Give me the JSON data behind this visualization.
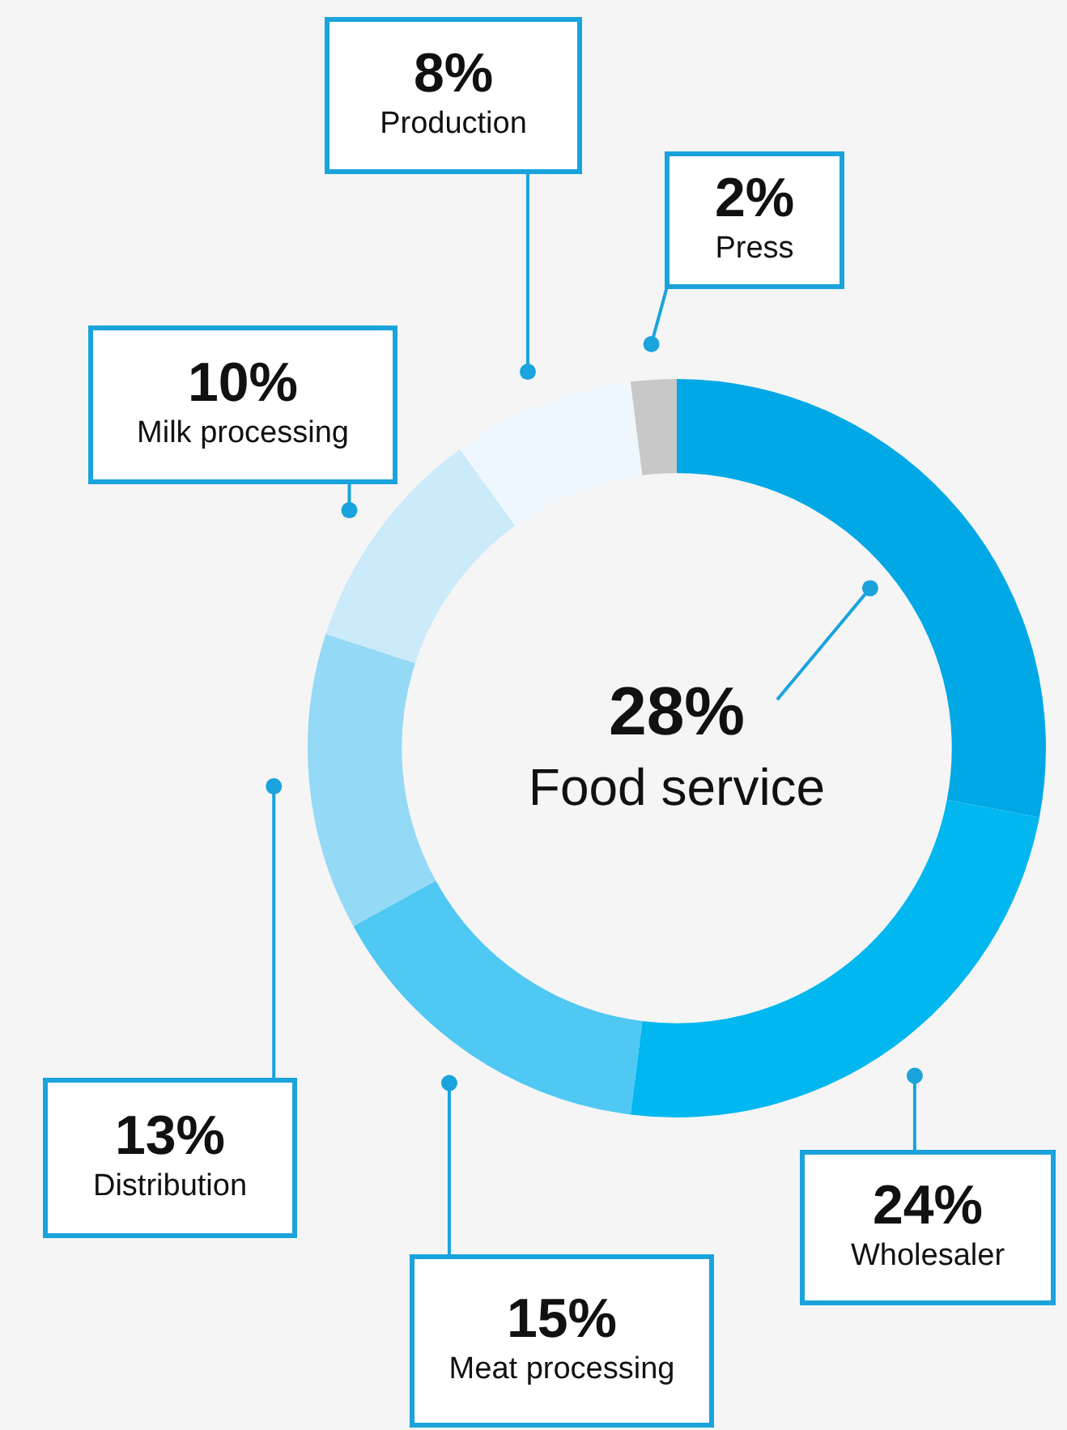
{
  "chart_data": {
    "type": "donut",
    "categories": [
      "Food service",
      "Wholesaler",
      "Meat processing",
      "Distribution",
      "Milk processing",
      "Production",
      "Press"
    ],
    "values": [
      28,
      24,
      15,
      13,
      10,
      8,
      2
    ],
    "colors": [
      "#00a8e6",
      "#00b7ef",
      "#4fc8f3",
      "#94d9f6",
      "#cbeafa",
      "#eef7fd",
      "#c8c8c8"
    ],
    "value_labels": [
      "28%",
      "24%",
      "15%",
      "13%",
      "10%",
      "8%",
      "2%"
    ]
  }
}
